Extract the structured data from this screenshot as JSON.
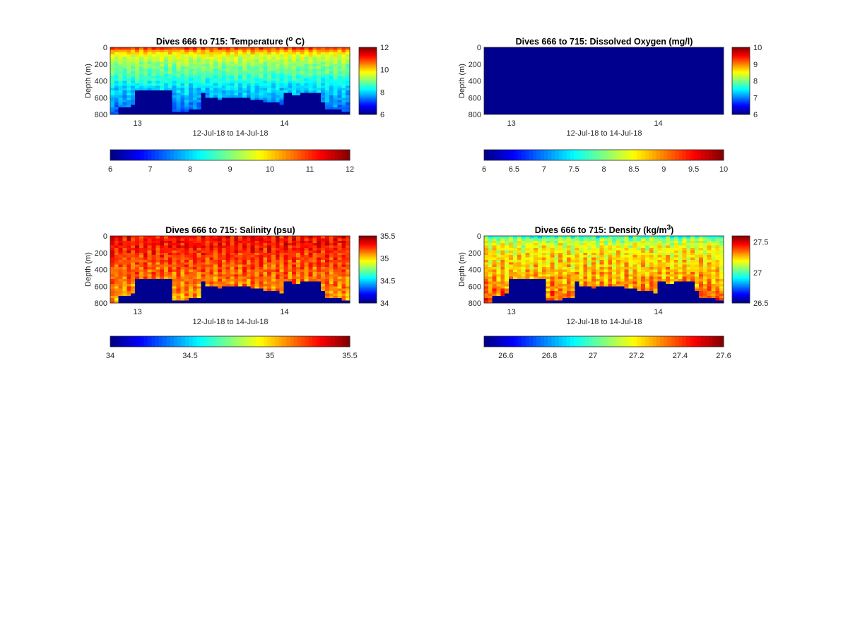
{
  "figure": {
    "date_range_label": "12-Jul-18 to 14-Jul-18",
    "depth_label": "Depth (m)",
    "x_tick_labels": [
      "13",
      "14"
    ],
    "depth_ticks": [
      0,
      200,
      400,
      600,
      800
    ]
  },
  "chart_data": [
    {
      "type": "heatmap",
      "variable": "temperature",
      "title_main": "Dives 666 to 715: Temperature (",
      "title_sup": "o",
      "title_end": " C)",
      "xlabel": "12-Jul-18 to 14-Jul-18",
      "ylabel": "Depth (m)",
      "x_ticks": [
        "13",
        "14"
      ],
      "ylim": [
        0,
        800
      ],
      "y_reversed": true,
      "clim": [
        6,
        12
      ],
      "colormap": "jet",
      "side_colorbar_ticks": [
        6,
        8,
        10,
        12
      ],
      "bottom_colorbar_ticks": [
        "6",
        "7",
        "8",
        "9",
        "10",
        "11",
        "12"
      ],
      "profile": [
        [
          0,
          11.2
        ],
        [
          40,
          10.3
        ],
        [
          100,
          9.6
        ],
        [
          200,
          9.1
        ],
        [
          300,
          8.8
        ],
        [
          400,
          8.4
        ],
        [
          500,
          8.0
        ],
        [
          600,
          7.8
        ],
        [
          700,
          7.5
        ],
        [
          800,
          7.2
        ]
      ],
      "noise": 0.25
    },
    {
      "type": "heatmap",
      "variable": "dissolved_oxygen",
      "title_main": "Dives 666 to 715: Dissolved Oxygen (mg/l)",
      "title_sup": "",
      "title_end": "",
      "xlabel": "12-Jul-18 to 14-Jul-18",
      "ylabel": "Depth (m)",
      "x_ticks": [
        "13",
        "14"
      ],
      "ylim": [
        0,
        800
      ],
      "y_reversed": true,
      "clim": [
        6,
        10
      ],
      "colormap": "jet",
      "side_colorbar_ticks": [
        6,
        7,
        8,
        9,
        10
      ],
      "bottom_colorbar_ticks": [
        "6",
        "6.5",
        "7",
        "7.5",
        "8",
        "8.5",
        "9",
        "9.5",
        "10"
      ],
      "no_data": true,
      "profile": [
        [
          0,
          6
        ],
        [
          800,
          6
        ]
      ],
      "noise": 0
    },
    {
      "type": "heatmap",
      "variable": "salinity",
      "title_main": "Dives 666 to 715: Salinity (psu)",
      "title_sup": "",
      "title_end": "",
      "xlabel": "12-Jul-18 to 14-Jul-18",
      "ylabel": "Depth (m)",
      "x_ticks": [
        "13",
        "14"
      ],
      "ylim": [
        0,
        800
      ],
      "y_reversed": true,
      "clim": [
        34,
        35.5
      ],
      "colormap": "jet",
      "side_colorbar_ticks": [
        34,
        34.5,
        35,
        35.5
      ],
      "bottom_colorbar_ticks": [
        "34",
        "34.5",
        "35",
        "35.5"
      ],
      "profile": [
        [
          0,
          35.3
        ],
        [
          100,
          35.3
        ],
        [
          300,
          35.2
        ],
        [
          500,
          35.15
        ],
        [
          700,
          35.1
        ],
        [
          800,
          35.05
        ]
      ],
      "noise": 0.09
    },
    {
      "type": "heatmap",
      "variable": "density",
      "title_main": "Dives 666 to 715: Density (kg/m",
      "title_sup": "3",
      "title_end": ")",
      "xlabel": "12-Jul-18 to 14-Jul-18",
      "ylabel": "Depth (m)",
      "x_ticks": [
        "13",
        "14"
      ],
      "ylim": [
        0,
        800
      ],
      "y_reversed": true,
      "clim": [
        26.5,
        27.6
      ],
      "colormap": "jet",
      "side_colorbar_ticks": [
        26.5,
        27,
        27.5
      ],
      "bottom_colorbar_ticks": [
        "26.6",
        "26.8",
        "27",
        "27.2",
        "27.4",
        "27.6"
      ],
      "profile": [
        [
          0,
          26.9
        ],
        [
          30,
          27.05
        ],
        [
          100,
          27.15
        ],
        [
          200,
          27.2
        ],
        [
          400,
          27.25
        ],
        [
          600,
          27.3
        ],
        [
          800,
          27.4
        ]
      ],
      "noise": 0.08
    }
  ],
  "bathymetry": {
    "x_ticks_frac": [
      0.114,
      0.727
    ],
    "segments": [
      [
        0.0,
        0.04,
        800
      ],
      [
        0.04,
        0.06,
        720
      ],
      [
        0.06,
        0.08,
        700
      ],
      [
        0.08,
        0.1,
        680
      ],
      [
        0.1,
        0.255,
        500
      ],
      [
        0.255,
        0.29,
        780
      ],
      [
        0.29,
        0.33,
        760
      ],
      [
        0.33,
        0.38,
        730
      ],
      [
        0.38,
        0.4,
        540
      ],
      [
        0.4,
        0.44,
        610
      ],
      [
        0.44,
        0.47,
        620
      ],
      [
        0.47,
        0.5,
        590
      ],
      [
        0.5,
        0.54,
        610
      ],
      [
        0.54,
        0.58,
        600
      ],
      [
        0.58,
        0.64,
        620
      ],
      [
        0.64,
        0.71,
        670
      ],
      [
        0.71,
        0.73,
        680
      ],
      [
        0.73,
        0.76,
        550
      ],
      [
        0.76,
        0.8,
        570
      ],
      [
        0.8,
        0.88,
        550
      ],
      [
        0.88,
        0.9,
        670
      ],
      [
        0.9,
        0.93,
        730
      ],
      [
        0.93,
        0.97,
        750
      ],
      [
        0.97,
        1.0,
        760
      ]
    ]
  }
}
